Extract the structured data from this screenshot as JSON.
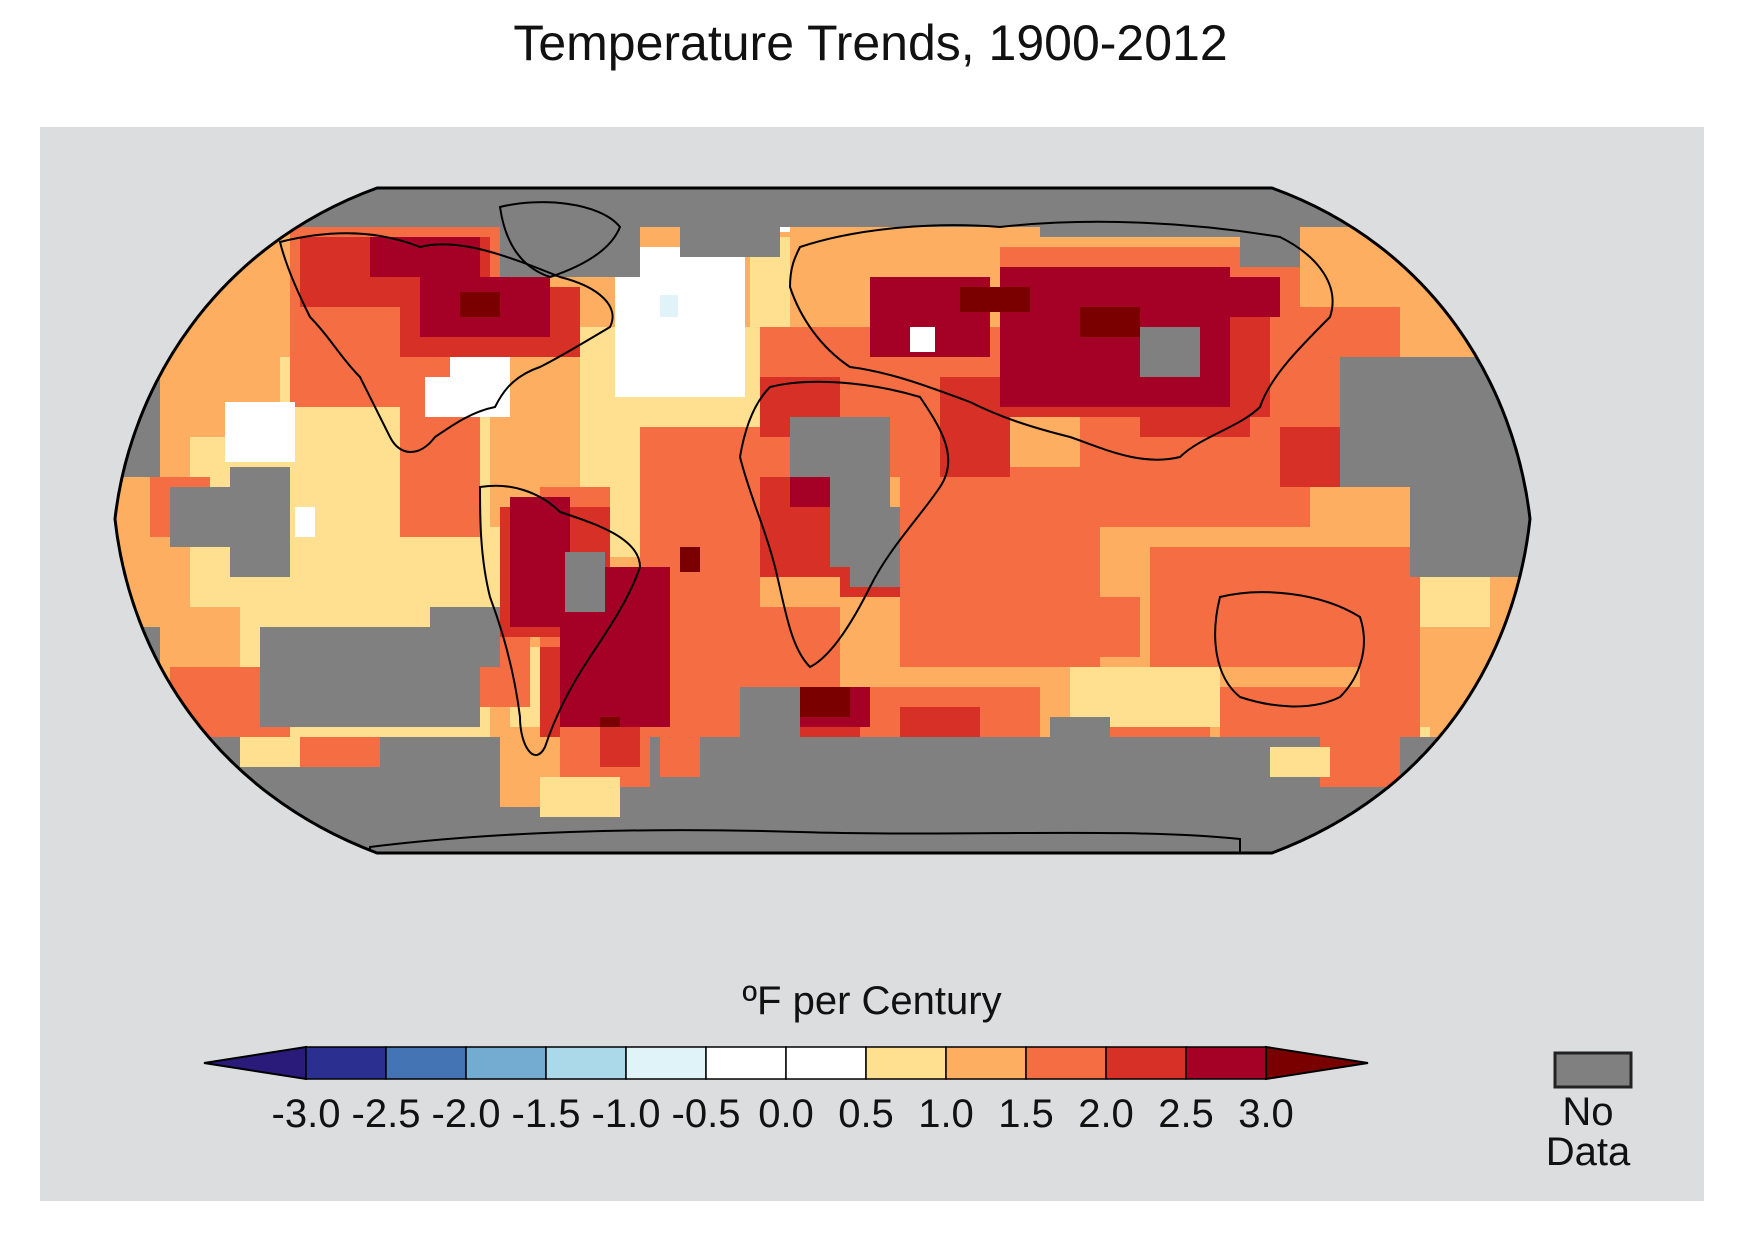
{
  "title": "Temperature Trends, 1900-2012",
  "legend": {
    "units_label": "ºF per Century",
    "ticks": [
      "-3.0",
      "-2.5",
      "-2.0",
      "-1.5",
      "-1.0",
      "-0.5",
      "0.0",
      "0.5",
      "1.0",
      "1.5",
      "2.0",
      "2.5",
      "3.0"
    ],
    "bin_colors": [
      "#2b2f8f",
      "#4574b4",
      "#74acd1",
      "#abd9e9",
      "#e0f3f8",
      "#ffffff",
      "#ffffff",
      "#fee090",
      "#fdae61",
      "#f46d43",
      "#d73027",
      "#a50026"
    ],
    "under_color": "#2a1a7a",
    "over_color": "#7a0000",
    "no_data_color": "#808080",
    "no_data_label": [
      "No",
      "Data"
    ]
  },
  "map": {
    "projection": "Robinson",
    "ocean_default_color": "#fdae61"
  }
}
